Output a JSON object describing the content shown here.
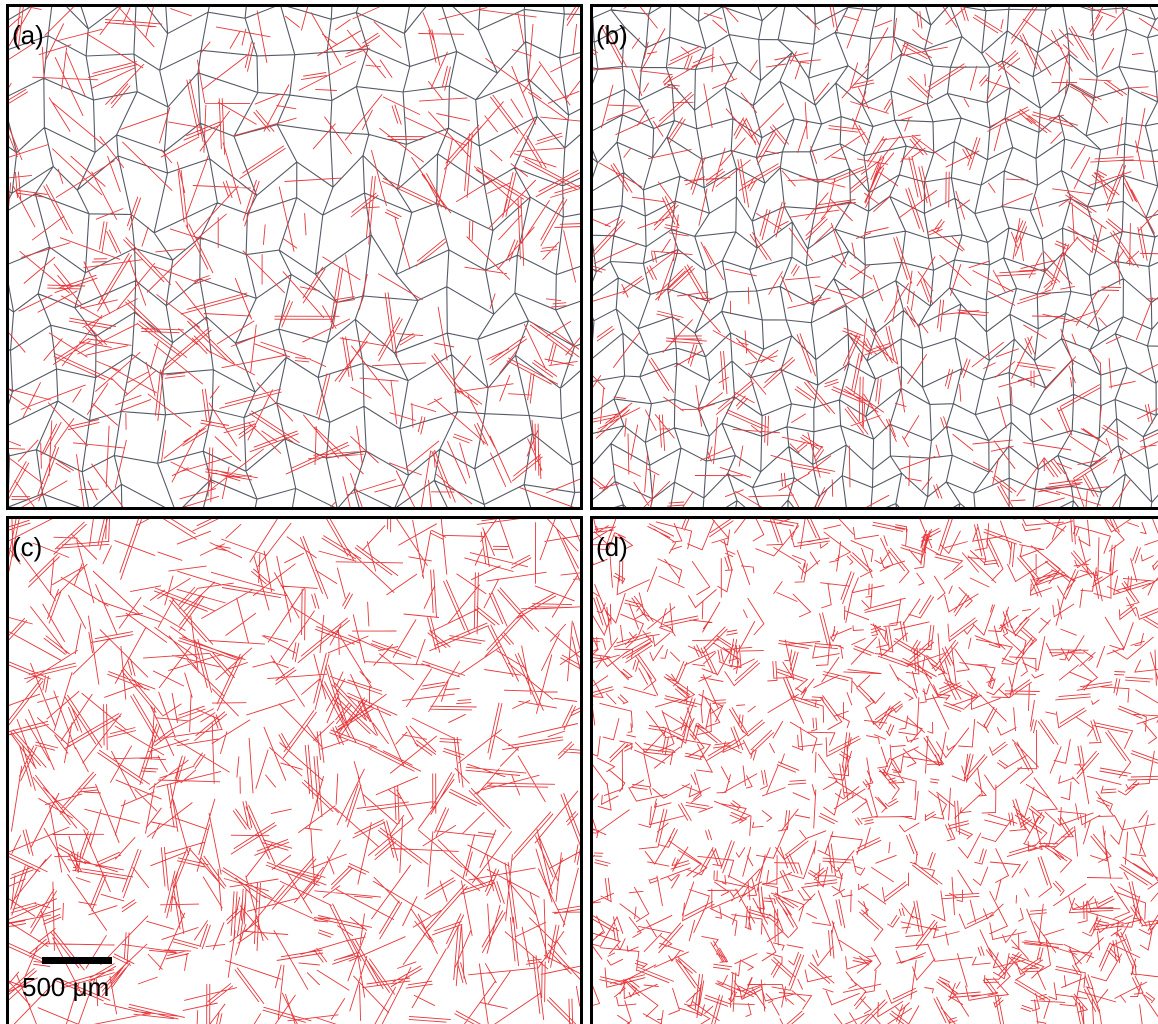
{
  "panels": [
    {
      "label": "(a)"
    },
    {
      "label": "(b)"
    },
    {
      "label": "(c)"
    },
    {
      "label": "(d)"
    }
  ],
  "scale_bar": {
    "label": "500 μm"
  }
}
